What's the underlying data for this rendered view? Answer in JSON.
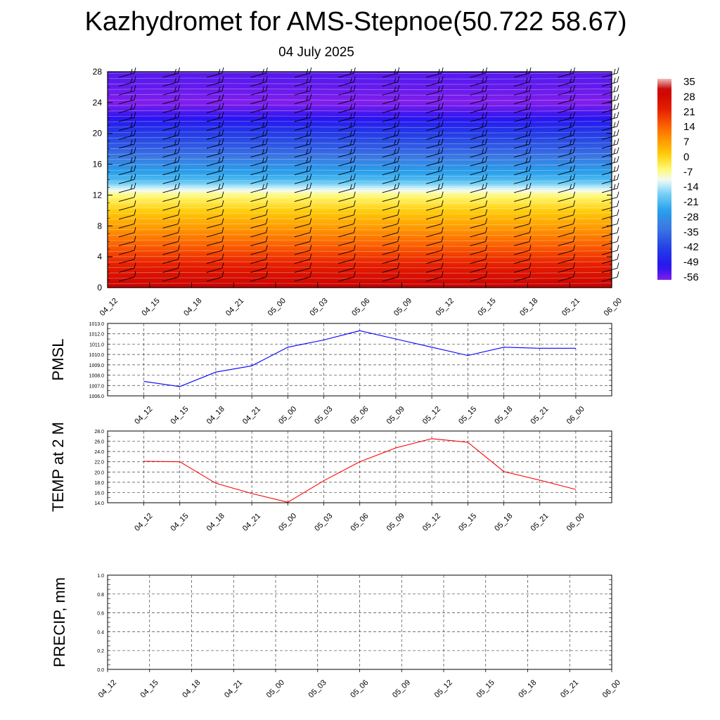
{
  "title": "Kazhydromet for AMS-Stepnoe(50.722 58.67)",
  "subtitle": "04 July 2025",
  "time_labels": [
    "04_12",
    "04_15",
    "04_18",
    "04_21",
    "05_00",
    "05_03",
    "05_06",
    "05_09",
    "05_12",
    "05_15",
    "05_18",
    "05_21",
    "06_00"
  ],
  "colors": {
    "pmsl_line": "#0000ff",
    "temp_line": "#ff0000",
    "precip_line": "#006400",
    "grid": "#555555"
  },
  "chart_data": [
    {
      "type": "heatmap",
      "name": "vertical-profile",
      "yticks": [
        "0",
        "4",
        "8",
        "12",
        "16",
        "20",
        "24",
        "28"
      ],
      "ylim": [
        0,
        28
      ],
      "x": [
        "04_12",
        "04_15",
        "04_18",
        "04_21",
        "05_00",
        "05_03",
        "05_06",
        "05_09",
        "05_12",
        "05_15",
        "05_18",
        "05_21",
        "06_00"
      ],
      "colorbar_labels": [
        "35",
        "28",
        "21",
        "14",
        "7",
        "0",
        "-7",
        "-14",
        "-21",
        "-28",
        "-35",
        "-42",
        "-49",
        "-56"
      ],
      "levels": [
        0,
        2,
        4,
        6,
        8,
        10,
        12,
        13,
        14,
        16,
        18,
        20,
        22,
        24,
        26,
        28
      ],
      "values_by_level": [
        30,
        24,
        18,
        12,
        6,
        0,
        -7,
        -14,
        -22,
        -30,
        -38,
        -44,
        -52,
        -58,
        -56,
        -55
      ],
      "wind_barbs": true
    },
    {
      "type": "line",
      "name": "pmsl",
      "ylabel": "PMSL",
      "ylim": [
        1006.0,
        1013.0
      ],
      "yticks": [
        "1006.0",
        "1007.0",
        "1008.0",
        "1009.0",
        "1010.0",
        "1011.0",
        "1012.0",
        "1013.0"
      ],
      "x": [
        "04_12",
        "04_15",
        "04_18",
        "04_21",
        "05_00",
        "05_03",
        "05_06",
        "05_09",
        "05_12",
        "05_15",
        "05_18",
        "05_21",
        "06_00"
      ],
      "values": [
        1007.4,
        1006.9,
        1008.3,
        1008.9,
        1010.7,
        1011.4,
        1012.3,
        1011.5,
        1010.7,
        1009.9,
        1010.7,
        1010.6,
        1010.6
      ],
      "grid": true
    },
    {
      "type": "line",
      "name": "temp",
      "ylabel": "TEMP at 2 M",
      "ylim": [
        14.0,
        28.0
      ],
      "yticks": [
        "14.0",
        "16.0",
        "18.0",
        "20.0",
        "22.0",
        "24.0",
        "26.0",
        "28.0"
      ],
      "x": [
        "04_12",
        "04_15",
        "04_18",
        "04_21",
        "05_00",
        "05_03",
        "05_06",
        "05_09",
        "05_12",
        "05_15",
        "05_18",
        "05_21",
        "06_00"
      ],
      "values": [
        22.1,
        22.0,
        17.8,
        15.8,
        14.1,
        18.3,
        22.0,
        24.7,
        26.5,
        25.8,
        20.1,
        18.4,
        16.6
      ],
      "grid": true
    },
    {
      "type": "line",
      "name": "precip",
      "ylabel": "PRECIP, mm",
      "ylim": [
        0.0,
        1.0
      ],
      "yticks": [
        "0.0",
        "0.2",
        "0.4",
        "0.6",
        "0.8",
        "1.0"
      ],
      "x": [
        "04_12",
        "04_15",
        "04_18",
        "04_21",
        "05_00",
        "05_03",
        "05_06",
        "05_09",
        "05_12",
        "05_15",
        "05_18",
        "05_21",
        "06_00"
      ],
      "values": [
        0,
        0,
        0,
        0,
        0,
        0,
        0,
        0,
        0,
        0,
        0,
        0,
        0
      ],
      "grid": true
    }
  ]
}
